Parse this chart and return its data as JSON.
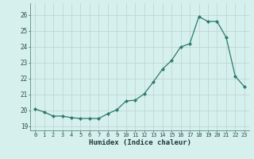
{
  "x": [
    0,
    1,
    2,
    3,
    4,
    5,
    6,
    7,
    8,
    9,
    10,
    11,
    12,
    13,
    14,
    15,
    16,
    17,
    18,
    19,
    20,
    21,
    22,
    23
  ],
  "y": [
    20.1,
    19.9,
    19.65,
    19.65,
    19.55,
    19.5,
    19.5,
    19.5,
    19.8,
    20.05,
    20.6,
    20.65,
    21.05,
    21.8,
    22.6,
    23.15,
    24.0,
    24.2,
    25.9,
    25.6,
    25.6,
    24.6,
    22.15,
    21.5
  ],
  "xlabel": "Humidex (Indice chaleur)",
  "xlim": [
    -0.5,
    23.5
  ],
  "ylim": [
    18.75,
    26.75
  ],
  "yticks": [
    19,
    20,
    21,
    22,
    23,
    24,
    25,
    26
  ],
  "xticks": [
    0,
    1,
    2,
    3,
    4,
    5,
    6,
    7,
    8,
    9,
    10,
    11,
    12,
    13,
    14,
    15,
    16,
    17,
    18,
    19,
    20,
    21,
    22,
    23
  ],
  "line_color": "#2d7a6e",
  "marker_color": "#2d7a6e",
  "bg_color": "#d6f0ee",
  "grid_color": "#c0d8d4",
  "tick_color": "#2d4a47",
  "label_color": "#1a3a37"
}
